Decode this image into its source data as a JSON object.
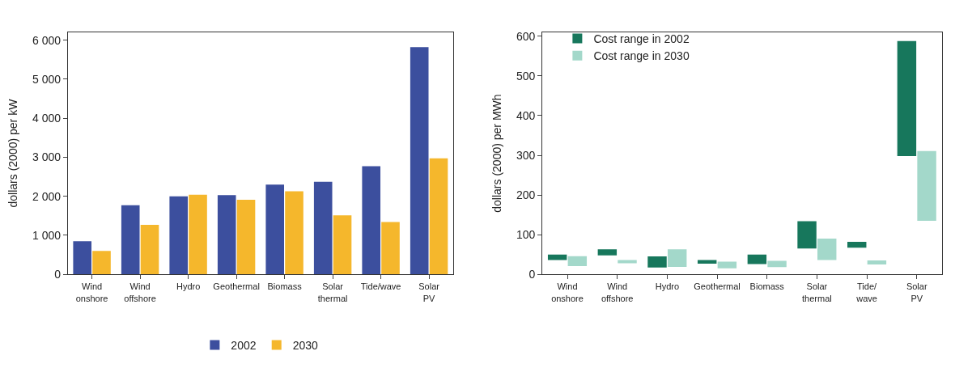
{
  "chart_data": [
    {
      "type": "bar",
      "ylabel": "dollars (2000) per kW",
      "categories": [
        "Wind onshore",
        "Wind offshore",
        "Hydro",
        "Geothermal",
        "Biomass",
        "Solar thermal",
        "Tide/wave",
        "Solar PV"
      ],
      "series": [
        {
          "name": "2002",
          "color": "#3c4f9e",
          "values": [
            850,
            1770,
            2000,
            2030,
            2300,
            2370,
            2770,
            5820
          ]
        },
        {
          "name": "2030",
          "color": "#f5b72c",
          "values": [
            600,
            1270,
            2040,
            1910,
            2130,
            1510,
            1340,
            2970
          ]
        }
      ],
      "ylim": [
        0,
        6200
      ],
      "yticks": [
        {
          "value": 0,
          "label": "0"
        },
        {
          "value": 1000,
          "label": "1 000"
        },
        {
          "value": 2000,
          "label": "2 000"
        },
        {
          "value": 3000,
          "label": "3 000"
        },
        {
          "value": 4000,
          "label": "4 000"
        },
        {
          "value": 5000,
          "label": "5 000"
        },
        {
          "value": 6000,
          "label": "6 000"
        }
      ],
      "legend": "bottom"
    },
    {
      "type": "bar",
      "ylabel": "dollars (2000) per MWh",
      "categories": [
        "Wind onshore",
        "Wind offshore",
        "Hydro",
        "Geothermal",
        "Biomass",
        "Solar thermal",
        "Tide/ wave",
        "Solar PV"
      ],
      "series": [
        {
          "name": "Cost range in 2002",
          "color": "#17775c",
          "base": [
            36,
            48,
            17,
            27,
            26,
            65,
            67,
            298
          ],
          "values": [
            14,
            15,
            28,
            9,
            24,
            69,
            15,
            290
          ]
        },
        {
          "name": "Cost range in 2030",
          "color": "#a3d8ca",
          "base": [
            21,
            28,
            19,
            15,
            18,
            36,
            25,
            135
          ],
          "values": [
            25,
            8,
            44,
            17,
            16,
            54,
            10,
            176
          ]
        }
      ],
      "ylim": [
        0,
        610
      ],
      "yticks": [
        0,
        100,
        200,
        300,
        400,
        500,
        600
      ],
      "legend": "top left"
    }
  ]
}
